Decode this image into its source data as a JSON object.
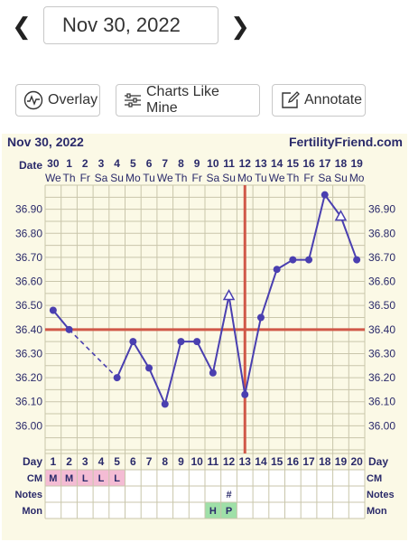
{
  "date_nav": {
    "date": "Nov 30, 2022",
    "prev_icon": "chevron-left-icon",
    "next_icon": "chevron-right-icon"
  },
  "toolbar": {
    "overlay_label": "Overlay",
    "charts_like_mine_label": "Charts Like Mine",
    "annotate_label": "Annotate",
    "overlay_icon": "wave-circle-icon",
    "charts_like_mine_icon": "sliders-icon",
    "annotate_icon": "edit-icon"
  },
  "chart_header": {
    "date": "Nov 30, 2022",
    "brand": "FertilityFriend.com"
  },
  "colors": {
    "background": "#fbf9e6",
    "grid": "#c9c6ab",
    "series": "#4a3fb0",
    "coverline": "#d05848",
    "cm_cell": "#f4bcd4",
    "mon_cell": "#9fe0a8"
  },
  "chart_data": {
    "type": "line",
    "date_row_label": "Date",
    "dates": [
      "30",
      "1",
      "2",
      "3",
      "4",
      "5",
      "6",
      "7",
      "8",
      "9",
      "10",
      "11",
      "12",
      "13",
      "14",
      "15",
      "16",
      "17",
      "18",
      "19"
    ],
    "weekdays": [
      "We",
      "Th",
      "Fr",
      "Sa",
      "Su",
      "Mo",
      "Tu",
      "We",
      "Th",
      "Fr",
      "Sa",
      "Su",
      "Mo",
      "Tu",
      "We",
      "Th",
      "Fr",
      "Sa",
      "Su",
      "Mo"
    ],
    "day_row_label": "Day",
    "days": [
      "1",
      "2",
      "3",
      "4",
      "5",
      "6",
      "7",
      "8",
      "9",
      "10",
      "11",
      "12",
      "13",
      "14",
      "15",
      "16",
      "17",
      "18",
      "19",
      "20"
    ],
    "yticks": [
      "36.90",
      "36.80",
      "36.70",
      "36.60",
      "36.50",
      "36.40",
      "36.30",
      "36.20",
      "36.10",
      "36.00"
    ],
    "ylim": [
      35.9,
      37.0
    ],
    "temps": [
      36.48,
      36.4,
      null,
      null,
      36.2,
      36.35,
      36.24,
      36.09,
      36.35,
      36.35,
      36.22,
      36.54,
      36.13,
      36.45,
      36.65,
      36.69,
      36.69,
      36.96,
      36.87,
      36.69
    ],
    "markers": [
      "dot",
      "dot",
      "",
      "",
      "dot",
      "dot",
      "dot",
      "dot",
      "dot",
      "dot",
      "dot",
      "triangle",
      "dot",
      "dot",
      "dot",
      "dot",
      "dot",
      "dot",
      "triangle",
      "dot"
    ],
    "dashed_segment": [
      1,
      4
    ],
    "coverline": 36.4,
    "ovulation_day": 13,
    "rows": [
      {
        "label": "CM",
        "cells": [
          "M",
          "M",
          "L",
          "L",
          "L",
          "",
          "",
          "",
          "",
          "",
          "",
          "",
          "",
          "",
          "",
          "",
          "",
          "",
          "",
          ""
        ]
      },
      {
        "label": "Notes",
        "cells": [
          "",
          "",
          "",
          "",
          "",
          "",
          "",
          "",
          "",
          "",
          "",
          "#",
          "",
          "",
          "",
          "",
          "",
          "",
          "",
          ""
        ]
      },
      {
        "label": "Mon",
        "cells": [
          "",
          "",
          "",
          "",
          "",
          "",
          "",
          "",
          "",
          "",
          "H",
          "P",
          "",
          "",
          "",
          "",
          "",
          "",
          "",
          ""
        ]
      }
    ]
  }
}
